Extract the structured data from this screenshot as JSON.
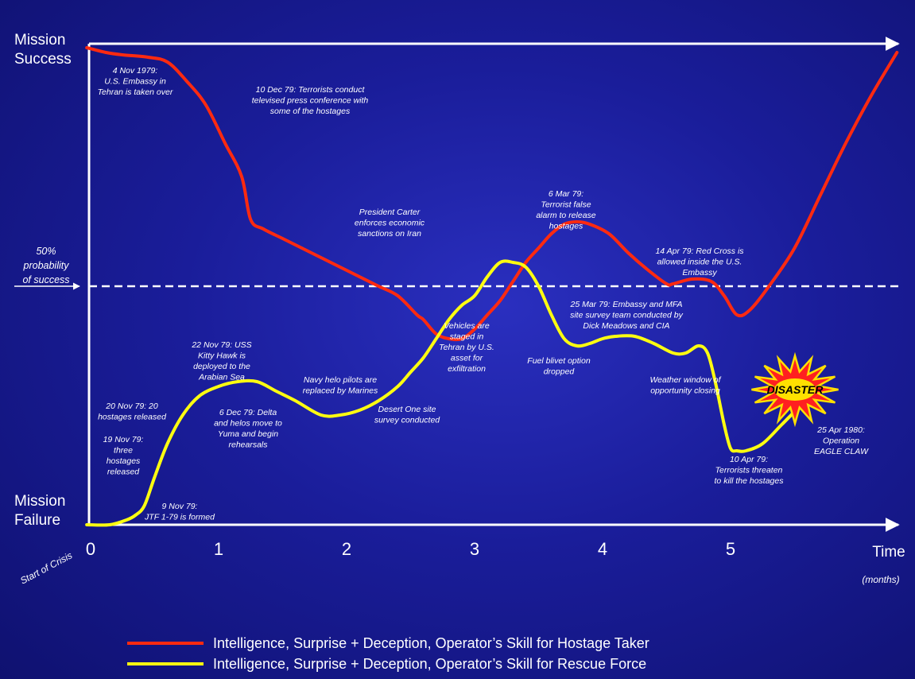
{
  "colors": {
    "hostage_taker": "#ff2a10",
    "rescue_force": "#ffff10",
    "axis": "#ffffff",
    "background": "#1a1d9a"
  },
  "axis": {
    "y_top_label": [
      "Mission",
      "Success"
    ],
    "y_bottom_label": [
      "Mission",
      "Failure"
    ],
    "threshold_label": [
      "50%",
      "probability",
      "of success"
    ],
    "x_title": "Time",
    "x_unit": "(months)",
    "origin_label": "Start of Crisis"
  },
  "legend": [
    {
      "series": "hostage_taker",
      "label": "Intelligence, Surprise + Deception, Operator’s Skill for Hostage Taker"
    },
    {
      "series": "rescue_force",
      "label": "Intelligence, Surprise + Deception, Operator’s Skill for Rescue Force"
    }
  ],
  "disaster_label": "DISASTER",
  "annotations": [
    {
      "id": "ann-embassy",
      "lines": [
        "4 Nov 1979:",
        "U.S. Embassy in",
        "Tehran is taken over"
      ]
    },
    {
      "id": "ann-press",
      "lines": [
        "10 Dec 79:  Terrorists conduct",
        "televised press conference with",
        "some of the hostages"
      ]
    },
    {
      "id": "ann-carter",
      "lines": [
        "President Carter",
        "enforces economic",
        "sanctions on Iran"
      ]
    },
    {
      "id": "ann-false-alarm",
      "lines": [
        "6 Mar 79:",
        "Terrorist false",
        "alarm to release",
        "hostages"
      ]
    },
    {
      "id": "ann-red-cross",
      "lines": [
        "14 Apr 79:  Red Cross is",
        "allowed inside the U.S.",
        "Embassy"
      ]
    },
    {
      "id": "ann-survey",
      "lines": [
        "25 Mar 79:  Embassy and MFA",
        "site survey team conducted by",
        "Dick Meadows and CIA"
      ]
    },
    {
      "id": "ann-vehicles",
      "lines": [
        "Vehicles are",
        "staged in",
        "Tehran by U.S.",
        "asset for",
        "exfiltration"
      ]
    },
    {
      "id": "ann-fuel",
      "lines": [
        "Fuel blivet option",
        "dropped"
      ]
    },
    {
      "id": "ann-weather",
      "lines": [
        "Weather window of",
        "opportunity closing"
      ]
    },
    {
      "id": "ann-kitty-hawk",
      "lines": [
        "22 Nov 79:  USS",
        "Kitty Hawk is",
        "deployed to the",
        "Arabian Sea"
      ]
    },
    {
      "id": "ann-navy",
      "lines": [
        "Navy helo pilots are",
        "replaced by Marines"
      ]
    },
    {
      "id": "ann-desert-one",
      "lines": [
        "Desert One site",
        "survey conducted"
      ]
    },
    {
      "id": "ann-20-released",
      "lines": [
        "20 Nov 79:  20",
        "hostages released"
      ]
    },
    {
      "id": "ann-delta",
      "lines": [
        "6 Dec 79: Delta",
        "and helos move to",
        "Yuma and begin",
        "rehearsals"
      ]
    },
    {
      "id": "ann-3-released",
      "lines": [
        "19 Nov 79:",
        "three",
        "hostages",
        "released"
      ]
    },
    {
      "id": "ann-jtf",
      "lines": [
        "9 Nov 79:",
        "JTF 1-79 is formed"
      ]
    },
    {
      "id": "ann-threaten",
      "lines": [
        "10 Apr 79:",
        "Terrorists threaten",
        "to kill the hostages"
      ]
    },
    {
      "id": "ann-eagle-claw",
      "lines": [
        "25 Apr 1980:",
        "Operation",
        "EAGLE CLAW"
      ]
    }
  ],
  "chart_data": {
    "type": "line",
    "title": "",
    "xlabel": "Time (months)",
    "ylabel": "",
    "xlim": [
      0,
      6.4
    ],
    "ylim": [
      0,
      1
    ],
    "x_ticks": [
      0,
      1,
      2,
      3,
      4,
      5
    ],
    "y_categories": {
      "0": "Mission Failure",
      "0.5": "50% probability of success",
      "1": "Mission Success"
    },
    "threshold": 0.5,
    "series": [
      {
        "key": "hostage_taker",
        "name": "Intelligence, Surprise + Deception, Operator’s Skill for Hostage Taker",
        "x": [
          -0.03,
          0.12,
          0.25,
          0.45,
          0.6,
          0.75,
          0.9,
          1.05,
          1.18,
          1.25,
          1.35,
          1.5,
          1.65,
          1.8,
          1.95,
          2.1,
          2.25,
          2.4,
          2.55,
          2.6,
          2.7,
          2.8,
          2.9,
          3.0,
          3.1,
          3.2,
          3.3,
          3.4,
          3.5,
          3.6,
          3.7,
          3.8,
          3.9,
          4.05,
          4.2,
          4.35,
          4.5,
          4.55,
          4.7,
          4.85,
          4.95,
          5.05,
          5.15,
          5.3,
          5.5,
          5.7,
          5.9,
          6.1,
          6.3
        ],
        "y": [
          1.0,
          0.99,
          0.985,
          0.98,
          0.97,
          0.93,
          0.88,
          0.8,
          0.73,
          0.64,
          0.62,
          0.6,
          0.58,
          0.56,
          0.54,
          0.52,
          0.5,
          0.48,
          0.44,
          0.43,
          0.4,
          0.39,
          0.39,
          0.41,
          0.44,
          0.47,
          0.51,
          0.55,
          0.58,
          0.61,
          0.63,
          0.635,
          0.63,
          0.61,
          0.57,
          0.535,
          0.505,
          0.505,
          0.515,
          0.51,
          0.48,
          0.44,
          0.45,
          0.5,
          0.58,
          0.69,
          0.8,
          0.9,
          0.99
        ]
      },
      {
        "key": "rescue_force",
        "name": "Intelligence, Surprise + Deception, Operator’s Skill for Rescue Force",
        "x": [
          -0.03,
          0.15,
          0.28,
          0.35,
          0.42,
          0.5,
          0.6,
          0.72,
          0.85,
          1.0,
          1.15,
          1.3,
          1.45,
          1.6,
          1.8,
          1.95,
          2.1,
          2.25,
          2.4,
          2.5,
          2.6,
          2.7,
          2.8,
          2.9,
          3.0,
          3.1,
          3.2,
          3.3,
          3.4,
          3.5,
          3.6,
          3.7,
          3.8,
          3.9,
          4.0,
          4.1,
          4.25,
          4.4,
          4.55,
          4.65,
          4.75,
          4.82,
          4.88,
          4.95,
          5.0,
          5.05,
          5.12,
          5.25,
          5.4,
          5.55,
          5.65
        ],
        "y": [
          0.0,
          0.0,
          0.01,
          0.02,
          0.04,
          0.1,
          0.17,
          0.23,
          0.27,
          0.29,
          0.3,
          0.3,
          0.28,
          0.26,
          0.23,
          0.23,
          0.24,
          0.26,
          0.29,
          0.32,
          0.35,
          0.39,
          0.43,
          0.46,
          0.48,
          0.52,
          0.55,
          0.55,
          0.54,
          0.5,
          0.44,
          0.39,
          0.375,
          0.38,
          0.39,
          0.395,
          0.395,
          0.38,
          0.36,
          0.36,
          0.375,
          0.36,
          0.3,
          0.21,
          0.16,
          0.155,
          0.155,
          0.17,
          0.21,
          0.25,
          0.27
        ]
      }
    ]
  }
}
